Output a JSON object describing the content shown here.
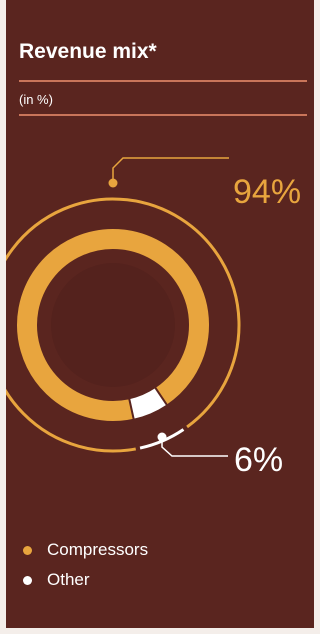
{
  "colors": {
    "compressors": "#e8a53e",
    "other": "#ffffff"
  },
  "chart_data": {
    "type": "pie",
    "title": "Revenue mix*",
    "subtitle": "(in %)",
    "slices": [
      {
        "label": "Compressors",
        "value": 94,
        "display": "94%",
        "color": "#e8a53e"
      },
      {
        "label": "Other",
        "value": 6,
        "display": "6%",
        "color": "#ffffff"
      }
    ],
    "legend_position": "bottom-left"
  }
}
